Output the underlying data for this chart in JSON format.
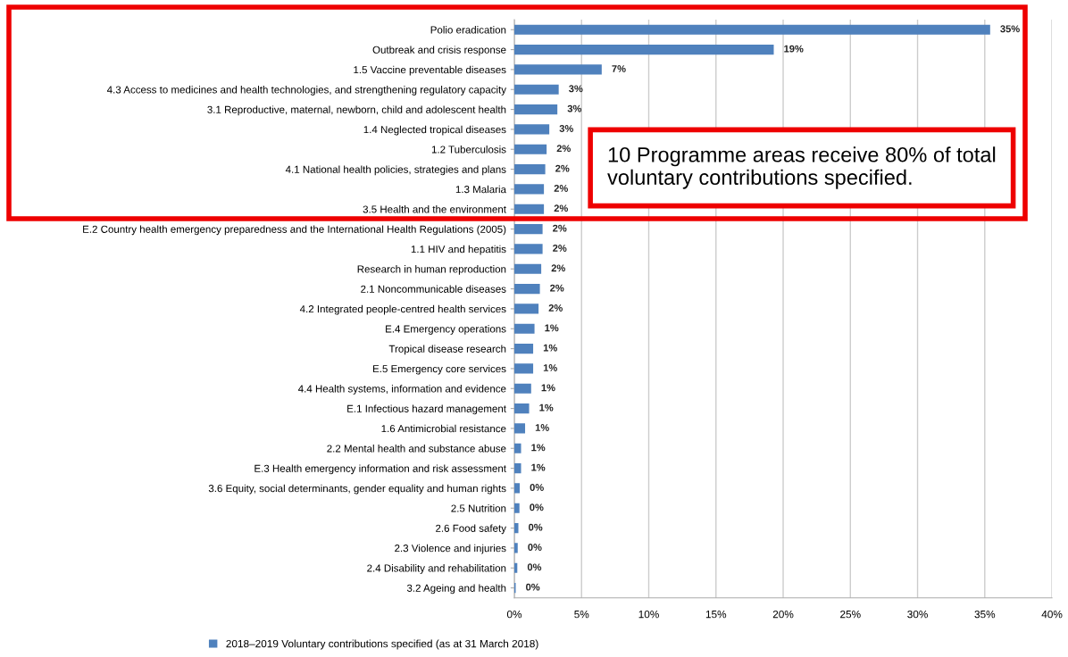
{
  "chart_data": {
    "type": "bar",
    "orientation": "horizontal",
    "categories": [
      "Polio eradication",
      "Outbreak and crisis response",
      "1.5 Vaccine preventable diseases",
      "4.3 Access to medicines and health technologies, and strengthening regulatory capacity",
      "3.1 Reproductive, maternal, newborn, child and adolescent health",
      "1.4 Neglected tropical diseases",
      "1.2 Tuberculosis",
      "4.1 National health policies, strategies and plans",
      "1.3 Malaria",
      "3.5 Health and the environment",
      "E.2 Country health emergency preparedness and the International Health Regulations (2005)",
      "1.1 HIV and hepatitis",
      "Research in human reproduction",
      "2.1 Noncommunicable diseases",
      "4.2 Integrated people-centred health services",
      "E.4 Emergency operations",
      "Tropical disease research",
      "E.5 Emergency core services",
      "4.4 Health systems, information and evidence",
      "E.1 Infectious hazard management",
      "1.6 Antimicrobial resistance",
      "2.2 Mental health and substance abuse",
      "E.3 Health emergency information and risk assessment",
      "3.6 Equity, social determinants, gender equality and human rights",
      "2.5 Nutrition",
      "2.6 Food safety",
      "2.3 Violence and injuries",
      "2.4 Disability and rehabilitation",
      "3.2 Ageing and health"
    ],
    "series": [
      {
        "name": "2018–2019 Voluntary contributions specified (as at 31 March 2018)",
        "color": "#4f81bd",
        "values": [
          35.4,
          19.3,
          6.5,
          3.3,
          3.2,
          2.6,
          2.4,
          2.3,
          2.2,
          2.2,
          2.1,
          2.1,
          2.0,
          1.9,
          1.8,
          1.5,
          1.4,
          1.4,
          1.25,
          1.1,
          0.8,
          0.5,
          0.5,
          0.4,
          0.38,
          0.3,
          0.25,
          0.22,
          0.1
        ],
        "value_labels": [
          "35%",
          "19%",
          "7%",
          "3%",
          "3%",
          "3%",
          "2%",
          "2%",
          "2%",
          "2%",
          "2%",
          "2%",
          "2%",
          "2%",
          "2%",
          "1%",
          "1%",
          "1%",
          "1%",
          "1%",
          "1%",
          "1%",
          "1%",
          "0%",
          "0%",
          "0%",
          "0%",
          "0%",
          "0%"
        ]
      }
    ],
    "xlim": [
      0,
      40
    ],
    "xticks": [
      {
        "value": 0,
        "label": "0%"
      },
      {
        "value": 5,
        "label": "5%"
      },
      {
        "value": 10,
        "label": "10%"
      },
      {
        "value": 15,
        "label": "15%"
      },
      {
        "value": 20,
        "label": "20%"
      },
      {
        "value": 25,
        "label": "25%"
      },
      {
        "value": 30,
        "label": "30%"
      },
      {
        "value": 35,
        "label": "35%"
      },
      {
        "value": 40,
        "label": "40%"
      }
    ],
    "grid": "x",
    "legend": "bottom",
    "annotations": [
      "10 Programme areas receive 80% of total voluntary contributions specified."
    ]
  }
}
